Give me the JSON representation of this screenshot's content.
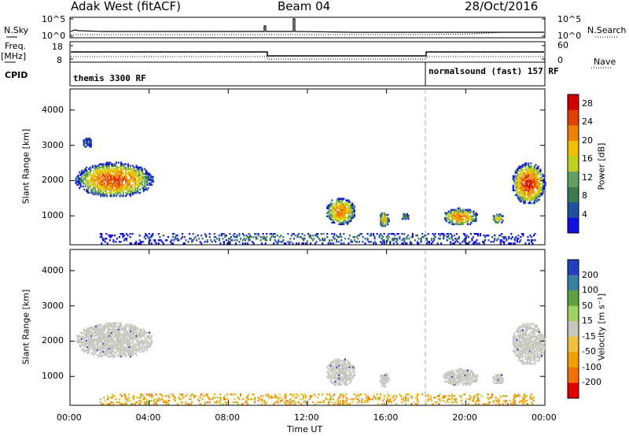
{
  "header": {
    "station": "Adak West (fitACF)",
    "beam": "Beam 04",
    "date": "28/Oct/2016"
  },
  "labels": {
    "nsky": "N.Sky",
    "nsearch": "N.Search",
    "freq": "Freq.",
    "mhz": "[MHz]",
    "nave": "Nave",
    "cpid": "CPID",
    "nsky_ticks": [
      "10^5",
      "10^0"
    ],
    "nsearch_ticks": [
      "10^5",
      "10^0"
    ],
    "freq_ticks": [
      "18",
      "8"
    ],
    "nave_ticks": [
      "60",
      "0"
    ]
  },
  "cpid_labels": [
    {
      "text": "themis 3300 RF"
    },
    {
      "text": "normalsound (fast) 157 RF"
    }
  ],
  "chart_data": [
    {
      "type": "heatmap",
      "name": "power",
      "ylabel": "Slant Range [km]",
      "xlabel": "Time UT",
      "x_ticks": [
        "00:00",
        "04:00",
        "08:00",
        "12:00",
        "16:00",
        "20:00",
        "00:00"
      ],
      "xlim": [
        0,
        24
      ],
      "ylim": [
        180,
        4600
      ],
      "y_ticks": [
        1000,
        2000,
        3000,
        4000
      ],
      "colorbar": {
        "label": "Power [dB]",
        "ticks": [
          4,
          8,
          12,
          16,
          20,
          24,
          28
        ],
        "range": [
          0,
          30
        ],
        "colors": [
          "#1010e0",
          "#2050a0",
          "#3a7a50",
          "#60a060",
          "#c0d020",
          "#f0c000",
          "#f08000",
          "#e04000",
          "#d00000"
        ]
      },
      "regions": [
        {
          "t": [
            0.2,
            4.2
          ],
          "r": [
            1500,
            2500
          ],
          "peak": 24
        },
        {
          "t": [
            0.6,
            1.1
          ],
          "r": [
            2900,
            3200
          ],
          "peak": 6
        },
        {
          "t": [
            12.9,
            14.4
          ],
          "r": [
            700,
            1500
          ],
          "peak": 22
        },
        {
          "t": [
            15.6,
            16.1
          ],
          "r": [
            650,
            1100
          ],
          "peak": 18
        },
        {
          "t": [
            16.7,
            17.1
          ],
          "r": [
            850,
            1050
          ],
          "peak": 10
        },
        {
          "t": [
            18.8,
            20.6
          ],
          "r": [
            700,
            1200
          ],
          "peak": 22
        },
        {
          "t": [
            21.3,
            21.9
          ],
          "r": [
            750,
            1050
          ],
          "peak": 16
        },
        {
          "t": [
            22.3,
            24.0
          ],
          "r": [
            1300,
            2500
          ],
          "peak": 26
        },
        {
          "t": [
            1.5,
            23.5
          ],
          "r": [
            200,
            500
          ],
          "peak": 8
        }
      ]
    },
    {
      "type": "heatmap",
      "name": "velocity",
      "ylabel": "Slant Range [km]",
      "xlabel": "Time UT",
      "x_ticks": [
        "00:00",
        "04:00",
        "08:00",
        "12:00",
        "16:00",
        "20:00",
        "00:00"
      ],
      "xlim": [
        0,
        24
      ],
      "ylim": [
        180,
        4600
      ],
      "y_ticks": [
        1000,
        2000,
        3000,
        4000
      ],
      "colorbar": {
        "label": "Velocity [m s⁻¹]",
        "ticks": [
          "200",
          "100",
          "50",
          "15",
          "-15",
          "-50",
          "-100",
          "-200"
        ],
        "colors": [
          "#2040c0",
          "#3a80a0",
          "#60a040",
          "#a0d060",
          "#c8c8c0",
          "#f0c040",
          "#f0a000",
          "#f07000",
          "#e00000"
        ]
      },
      "regions": [
        {
          "t": [
            0.2,
            4.2
          ],
          "r": [
            1500,
            2500
          ],
          "class": "ground"
        },
        {
          "t": [
            12.9,
            14.4
          ],
          "r": [
            700,
            1500
          ],
          "class": "ground"
        },
        {
          "t": [
            15.6,
            16.1
          ],
          "r": [
            650,
            1100
          ],
          "class": "ground"
        },
        {
          "t": [
            18.8,
            20.6
          ],
          "r": [
            700,
            1200
          ],
          "class": "ground"
        },
        {
          "t": [
            21.3,
            21.9
          ],
          "r": [
            750,
            1050
          ],
          "class": "ground"
        },
        {
          "t": [
            22.3,
            24.0
          ],
          "r": [
            1300,
            2500
          ],
          "class": "ground"
        },
        {
          "t": [
            1.5,
            23.5
          ],
          "r": [
            200,
            500
          ],
          "class": "negative"
        }
      ]
    }
  ]
}
